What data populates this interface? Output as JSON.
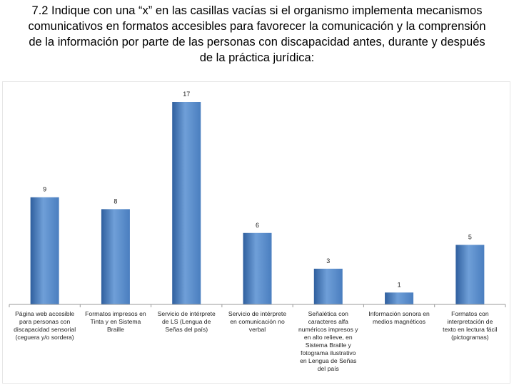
{
  "title_lines": [
    "7.2 Indique con una “x” en las casillas vacías si el organismo implementa mecanismos",
    "comunicativos en formatos accesibles  para favorecer la comunicación y la comprensión",
    "de la información por parte de las personas con discapacidad antes, durante y después",
    "de la práctica jurídica:"
  ],
  "colors": {
    "bar_light": "#6f9fd8",
    "bar_mid": "#4a7ebf",
    "bar_dark": "#2f5f9e",
    "axis": "#9a9a9a"
  },
  "chart_data": {
    "type": "bar",
    "title": "",
    "xlabel": "",
    "ylabel": "",
    "ylim": [
      0,
      17
    ],
    "grid": false,
    "legend": "none",
    "categories": [
      [
        "Página web accesible",
        "para personas con",
        "discapacidad sensorial",
        "(ceguera y/o sordera)"
      ],
      [
        "Formatos impresos en",
        "Tinta y en Sistema",
        "Braille"
      ],
      [
        "Servicio de intérprete",
        "de LS (Lengua de",
        "Señas del país)"
      ],
      [
        "Servicio de intérprete",
        "en comunicación no",
        "verbal"
      ],
      [
        "Señalética con",
        "caracteres alfa",
        "numéricos impresos y",
        "en alto relieve, en",
        "Sistema Braille y",
        "fotograma ilustrativo",
        "en Lengua de Señas",
        "del país"
      ],
      [
        "Información sonora en",
        "medios magnéticos"
      ],
      [
        "Formatos con",
        "interpretación de",
        "texto en lectura fácil",
        "(pictogramas)"
      ]
    ],
    "values": [
      9,
      8,
      17,
      6,
      3,
      1,
      5
    ],
    "value_labels": [
      "9",
      "8",
      "17",
      "6",
      "3",
      "1",
      "5"
    ]
  }
}
